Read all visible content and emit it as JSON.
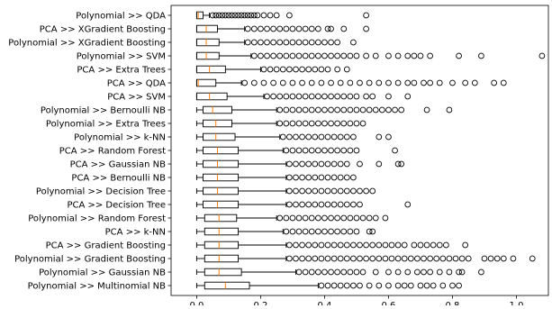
{
  "chart_data": {
    "type": "boxplot",
    "orientation": "horizontal",
    "title": "",
    "xlabel": "",
    "ylabel": "",
    "xlim": [
      -0.08,
      1.1
    ],
    "x_ticks": [
      0.0,
      0.2,
      0.4,
      0.6,
      0.8,
      1.0
    ],
    "x_tick_labels": [
      "0.0",
      "0.2",
      "0.4",
      "0.6",
      "0.8",
      "1.0"
    ],
    "grid": false,
    "colors": {
      "box": "#000000",
      "median": "#ff7f0e",
      "flier": "#000000"
    },
    "categories": [
      "Polynomial >> QDA",
      "PCA >> XGradient Boosting",
      "Polynomial >> XGradient Boosting",
      "Polynomial >> SVM",
      "PCA >> Extra Trees",
      "PCA >> QDA",
      "PCA >> SVM",
      "Polynomial >> Bernoulli NB",
      "Polynomial >> Extra Trees",
      "Polynomial >> k-NN",
      "PCA >> Random Forest",
      "PCA >> Gaussian NB",
      "PCA >> Bernoulli NB",
      "Polynomial >> Decision Tree",
      "PCA >> Decision Tree",
      "Polynomial >> Random Forest",
      "PCA >> k-NN",
      "PCA >> Gradient Boosting",
      "Polynomial >> Gradient Boosting",
      "Polynomial >> Gaussian NB",
      "Polynomial >> Multinomial NB"
    ],
    "boxes": [
      {
        "whislo": 0.0,
        "q1": 0.0,
        "med": 0.005,
        "q3": 0.02,
        "whishi": 0.04,
        "fliers": [
          0.05,
          0.06,
          0.07,
          0.08,
          0.09,
          0.1,
          0.11,
          0.12,
          0.13,
          0.14,
          0.15,
          0.16,
          0.17,
          0.18,
          0.19,
          0.21,
          0.23,
          0.25,
          0.29,
          0.53
        ]
      },
      {
        "whislo": 0.0,
        "q1": 0.0,
        "med": 0.03,
        "q3": 0.065,
        "whishi": 0.15,
        "fliers": [
          0.16,
          0.18,
          0.2,
          0.22,
          0.24,
          0.26,
          0.28,
          0.3,
          0.32,
          0.34,
          0.36,
          0.38,
          0.41,
          0.42,
          0.46,
          0.53
        ]
      },
      {
        "whislo": 0.0,
        "q1": 0.0,
        "med": 0.03,
        "q3": 0.07,
        "whishi": 0.15,
        "fliers": [
          0.16,
          0.18,
          0.2,
          0.22,
          0.24,
          0.26,
          0.28,
          0.3,
          0.32,
          0.34,
          0.36,
          0.38,
          0.4,
          0.42,
          0.44,
          0.49
        ]
      },
      {
        "whislo": 0.0,
        "q1": 0.0,
        "med": 0.03,
        "q3": 0.07,
        "whishi": 0.17,
        "fliers": [
          0.18,
          0.2,
          0.22,
          0.24,
          0.26,
          0.28,
          0.3,
          0.32,
          0.34,
          0.36,
          0.38,
          0.4,
          0.42,
          0.44,
          0.46,
          0.48,
          0.5,
          0.53,
          0.56,
          0.6,
          0.63,
          0.66,
          0.68,
          0.7,
          0.73,
          0.82,
          0.89,
          1.08
        ]
      },
      {
        "whislo": 0.0,
        "q1": 0.0,
        "med": 0.04,
        "q3": 0.09,
        "whishi": 0.2,
        "fliers": [
          0.21,
          0.23,
          0.25,
          0.27,
          0.29,
          0.31,
          0.33,
          0.35,
          0.37,
          0.39,
          0.41,
          0.44,
          0.47
        ]
      },
      {
        "whislo": 0.0,
        "q1": 0.0,
        "med": 0.005,
        "q3": 0.06,
        "whishi": 0.14,
        "fliers": [
          0.15,
          0.18,
          0.21,
          0.24,
          0.27,
          0.3,
          0.33,
          0.36,
          0.39,
          0.42,
          0.45,
          0.48,
          0.51,
          0.54,
          0.57,
          0.6,
          0.63,
          0.66,
          0.68,
          0.71,
          0.73,
          0.76,
          0.8,
          0.84,
          0.87,
          0.93,
          0.96
        ]
      },
      {
        "whislo": 0.0,
        "q1": 0.0,
        "med": 0.04,
        "q3": 0.095,
        "whishi": 0.21,
        "fliers": [
          0.22,
          0.24,
          0.26,
          0.28,
          0.3,
          0.32,
          0.34,
          0.36,
          0.38,
          0.4,
          0.42,
          0.44,
          0.46,
          0.48,
          0.5,
          0.53,
          0.55,
          0.6,
          0.66
        ]
      },
      {
        "whislo": 0.0,
        "q1": 0.02,
        "med": 0.05,
        "q3": 0.11,
        "whishi": 0.25,
        "fliers": [
          0.26,
          0.28,
          0.3,
          0.32,
          0.34,
          0.36,
          0.38,
          0.4,
          0.42,
          0.44,
          0.46,
          0.48,
          0.5,
          0.52,
          0.54,
          0.56,
          0.58,
          0.6,
          0.62,
          0.64,
          0.72,
          0.79
        ]
      },
      {
        "whislo": 0.0,
        "q1": 0.02,
        "med": 0.06,
        "q3": 0.11,
        "whishi": 0.25,
        "fliers": [
          0.26,
          0.28,
          0.3,
          0.32,
          0.34,
          0.36,
          0.38,
          0.4,
          0.42,
          0.44,
          0.46,
          0.48,
          0.5,
          0.52
        ]
      },
      {
        "whislo": 0.0,
        "q1": 0.02,
        "med": 0.06,
        "q3": 0.12,
        "whishi": 0.26,
        "fliers": [
          0.27,
          0.29,
          0.31,
          0.33,
          0.35,
          0.37,
          0.39,
          0.41,
          0.43,
          0.45,
          0.47,
          0.49,
          0.57,
          0.6
        ]
      },
      {
        "whislo": 0.0,
        "q1": 0.02,
        "med": 0.065,
        "q3": 0.13,
        "whishi": 0.27,
        "fliers": [
          0.28,
          0.3,
          0.32,
          0.34,
          0.36,
          0.38,
          0.4,
          0.42,
          0.44,
          0.46,
          0.48,
          0.5,
          0.62
        ]
      },
      {
        "whislo": 0.0,
        "q1": 0.02,
        "med": 0.065,
        "q3": 0.13,
        "whishi": 0.28,
        "fliers": [
          0.29,
          0.31,
          0.33,
          0.35,
          0.37,
          0.39,
          0.41,
          0.43,
          0.45,
          0.47,
          0.51,
          0.57,
          0.63,
          0.64
        ]
      },
      {
        "whislo": 0.0,
        "q1": 0.02,
        "med": 0.065,
        "q3": 0.13,
        "whishi": 0.28,
        "fliers": [
          0.29,
          0.31,
          0.33,
          0.35,
          0.37,
          0.39,
          0.41,
          0.43,
          0.45,
          0.47,
          0.49
        ]
      },
      {
        "whislo": 0.0,
        "q1": 0.02,
        "med": 0.065,
        "q3": 0.13,
        "whishi": 0.28,
        "fliers": [
          0.29,
          0.31,
          0.33,
          0.35,
          0.37,
          0.39,
          0.41,
          0.43,
          0.45,
          0.47,
          0.49,
          0.51,
          0.53,
          0.55
        ]
      },
      {
        "whislo": 0.0,
        "q1": 0.02,
        "med": 0.065,
        "q3": 0.13,
        "whishi": 0.28,
        "fliers": [
          0.29,
          0.31,
          0.33,
          0.35,
          0.37,
          0.39,
          0.41,
          0.43,
          0.45,
          0.47,
          0.49,
          0.51,
          0.66
        ]
      },
      {
        "whislo": 0.0,
        "q1": 0.025,
        "med": 0.07,
        "q3": 0.125,
        "whishi": 0.25,
        "fliers": [
          0.26,
          0.28,
          0.3,
          0.32,
          0.34,
          0.36,
          0.38,
          0.4,
          0.42,
          0.44,
          0.46,
          0.48,
          0.5,
          0.52,
          0.54,
          0.56,
          0.59
        ]
      },
      {
        "whislo": 0.0,
        "q1": 0.025,
        "med": 0.07,
        "q3": 0.13,
        "whishi": 0.27,
        "fliers": [
          0.28,
          0.3,
          0.32,
          0.34,
          0.36,
          0.38,
          0.4,
          0.42,
          0.44,
          0.46,
          0.48,
          0.5,
          0.54,
          0.55
        ]
      },
      {
        "whislo": 0.0,
        "q1": 0.025,
        "med": 0.07,
        "q3": 0.13,
        "whishi": 0.28,
        "fliers": [
          0.29,
          0.31,
          0.33,
          0.35,
          0.37,
          0.39,
          0.41,
          0.43,
          0.45,
          0.47,
          0.49,
          0.51,
          0.53,
          0.55,
          0.57,
          0.59,
          0.61,
          0.63,
          0.65,
          0.68,
          0.7,
          0.72,
          0.74,
          0.76,
          0.78,
          0.84
        ]
      },
      {
        "whislo": 0.0,
        "q1": 0.025,
        "med": 0.07,
        "q3": 0.13,
        "whishi": 0.28,
        "fliers": [
          0.29,
          0.31,
          0.33,
          0.35,
          0.37,
          0.39,
          0.41,
          0.43,
          0.45,
          0.47,
          0.49,
          0.51,
          0.53,
          0.55,
          0.57,
          0.59,
          0.61,
          0.63,
          0.65,
          0.67,
          0.69,
          0.71,
          0.73,
          0.75,
          0.77,
          0.79,
          0.81,
          0.83,
          0.85,
          0.9,
          0.92,
          0.94,
          0.96,
          0.99,
          1.05
        ]
      },
      {
        "whislo": 0.0,
        "q1": 0.025,
        "med": 0.07,
        "q3": 0.14,
        "whishi": 0.31,
        "fliers": [
          0.32,
          0.34,
          0.36,
          0.38,
          0.4,
          0.42,
          0.44,
          0.46,
          0.48,
          0.5,
          0.52,
          0.56,
          0.6,
          0.63,
          0.66,
          0.69,
          0.71,
          0.73,
          0.76,
          0.79,
          0.82,
          0.83,
          0.89
        ]
      },
      {
        "whislo": 0.0,
        "q1": 0.025,
        "med": 0.09,
        "q3": 0.165,
        "whishi": 0.38,
        "fliers": [
          0.39,
          0.41,
          0.43,
          0.45,
          0.47,
          0.49,
          0.51,
          0.54,
          0.57,
          0.6,
          0.63,
          0.65,
          0.67,
          0.7,
          0.72,
          0.74,
          0.77,
          0.8,
          0.82
        ]
      }
    ]
  }
}
